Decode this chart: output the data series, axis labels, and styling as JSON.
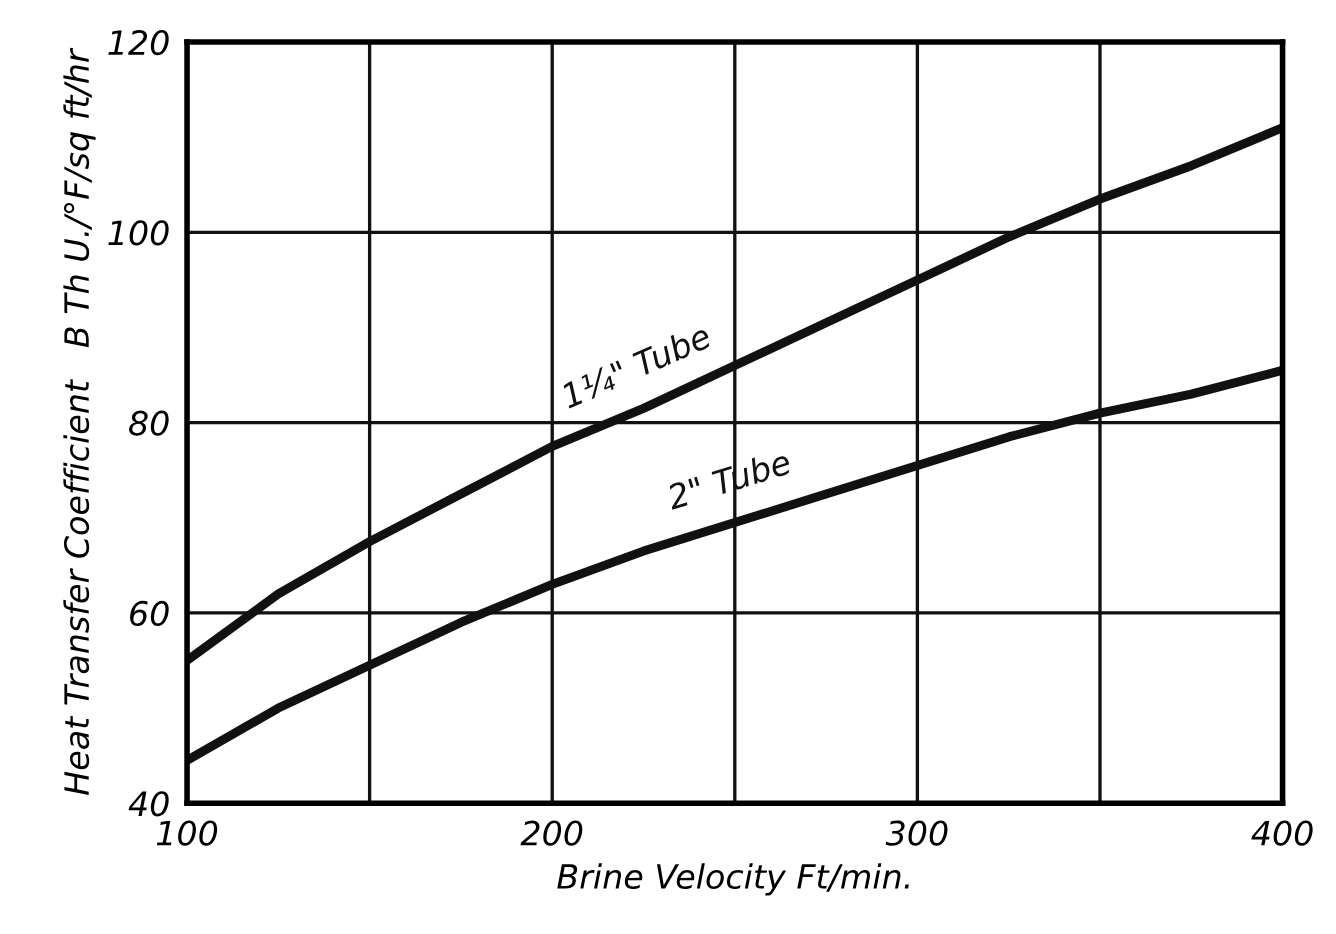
{
  "chart_data": {
    "type": "line",
    "xlabel": "Brine Velocity Ft/min.",
    "ylabel": "Heat Transfer Coefficient   B Th U./°F/sq ft/hr",
    "x": [
      100,
      125,
      150,
      175,
      200,
      225,
      250,
      275,
      300,
      325,
      350,
      375,
      400
    ],
    "series": [
      {
        "name": "1¼\" Tube",
        "color": "#111111",
        "values": [
          55,
          62,
          67.5,
          72.5,
          77.5,
          81.5,
          86,
          90.5,
          95,
          99.5,
          103.5,
          107,
          111
        ]
      },
      {
        "name": "2\" Tube",
        "color": "#111111",
        "values": [
          44.5,
          50,
          54.5,
          59,
          63,
          66.5,
          69.5,
          72.5,
          75.5,
          78.5,
          81,
          83,
          85.5
        ]
      }
    ],
    "xlim": [
      100,
      400
    ],
    "ylim": [
      40,
      120
    ],
    "xticks": [
      100,
      {
        "value": 150,
        "label": null
      },
      200,
      {
        "value": 250,
        "label": null
      },
      300,
      {
        "value": 350,
        "label": null
      },
      400
    ],
    "yticks": [
      40,
      60,
      80,
      100,
      120
    ],
    "grid": true,
    "legend": false,
    "line_style": "solid",
    "marker": "none"
  }
}
